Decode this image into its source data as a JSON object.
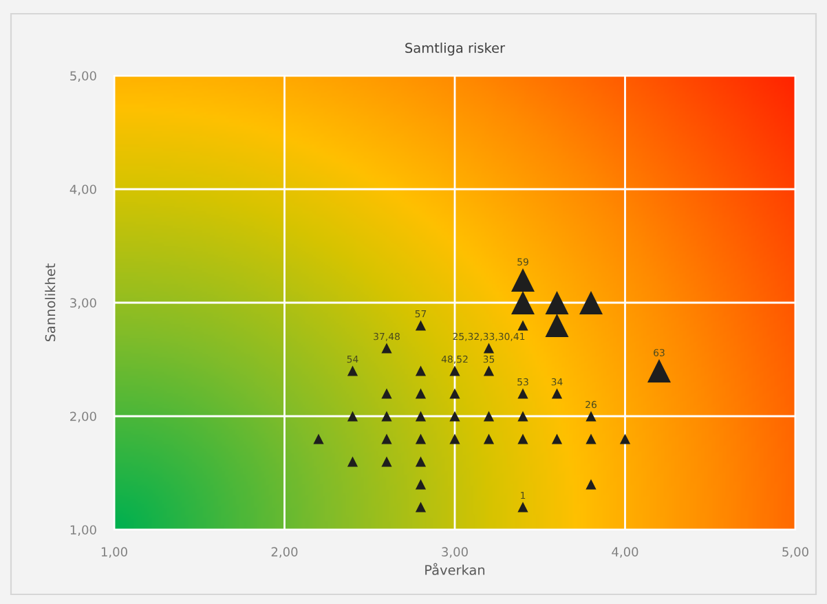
{
  "chart_data": {
    "type": "bubble",
    "title": "Samtliga risker",
    "xlabel": "Påverkan",
    "ylabel": "Sannolikhet",
    "x": [
      3.4,
      3.4,
      3.6,
      3.8,
      3.6,
      4.2,
      2.8,
      3.4,
      2.6,
      3.2,
      2.4,
      2.8,
      3.0,
      3.2,
      2.6,
      2.8,
      3.0,
      3.4,
      3.6,
      2.4,
      2.6,
      2.8,
      3.0,
      3.2,
      3.4,
      3.8,
      2.2,
      2.6,
      2.8,
      3.0,
      3.2,
      3.4,
      3.6,
      3.8,
      4.0,
      2.4,
      2.6,
      2.8,
      2.8,
      3.8,
      2.8,
      3.4
    ],
    "values": [
      3.2,
      3.0,
      3.0,
      3.0,
      2.8,
      2.4,
      2.8,
      2.8,
      2.6,
      2.6,
      2.4,
      2.4,
      2.4,
      2.4,
      2.2,
      2.2,
      2.2,
      2.2,
      2.2,
      2.0,
      2.0,
      2.0,
      2.0,
      2.0,
      2.0,
      2.0,
      1.8,
      1.8,
      1.8,
      1.8,
      1.8,
      1.8,
      1.8,
      1.8,
      1.8,
      1.6,
      1.6,
      1.6,
      1.4,
      1.4,
      1.2,
      1.2
    ],
    "sizes": [
      1,
      1,
      1,
      1,
      1,
      1,
      0.2,
      0.2,
      0.2,
      0.2,
      0.2,
      0.2,
      0.2,
      0.2,
      0.2,
      0.2,
      0.2,
      0.2,
      0.2,
      0.2,
      0.2,
      0.2,
      0.2,
      0.2,
      0.2,
      0.2,
      0.2,
      0.2,
      0.2,
      0.2,
      0.2,
      0.2,
      0.2,
      0.2,
      0.2,
      0.2,
      0.2,
      0.2,
      0.2,
      0.2,
      0.2,
      0.2
    ],
    "color": "#1e1e1e",
    "marker": "triangle",
    "xlim": [
      1,
      5
    ],
    "ylim": [
      1,
      5
    ],
    "xticks": [
      {
        "value": 1,
        "label": "1,00"
      },
      {
        "value": 2,
        "label": "2,00"
      },
      {
        "value": 3,
        "label": "3,00"
      },
      {
        "value": 4,
        "label": "4,00"
      },
      {
        "value": 5,
        "label": "5,00"
      }
    ],
    "yticks": [
      {
        "value": 1,
        "label": "1,00"
      },
      {
        "value": 2,
        "label": "2,00"
      },
      {
        "value": 3,
        "label": "3,00"
      },
      {
        "value": 4,
        "label": "4,00"
      },
      {
        "value": 5,
        "label": "5,00"
      }
    ],
    "grid": true,
    "annotations": [
      {
        "text": "59",
        "x": 3.4,
        "y": 3.2
      },
      {
        "text": "57",
        "x": 2.8,
        "y": 2.8
      },
      {
        "text": "37,48",
        "x": 2.6,
        "y": 2.6
      },
      {
        "text": "25,32,33,30,41",
        "x": 3.2,
        "y": 2.6
      },
      {
        "text": "54",
        "x": 2.4,
        "y": 2.4
      },
      {
        "text": "48,52",
        "x": 3.0,
        "y": 2.4
      },
      {
        "text": "35",
        "x": 3.2,
        "y": 2.4
      },
      {
        "text": "63",
        "x": 4.2,
        "y": 2.4
      },
      {
        "text": "53",
        "x": 3.4,
        "y": 2.2
      },
      {
        "text": "34",
        "x": 3.6,
        "y": 2.2
      },
      {
        "text": "26",
        "x": 3.8,
        "y": 2.0
      },
      {
        "text": "1",
        "x": 3.4,
        "y": 1.2
      }
    ]
  }
}
